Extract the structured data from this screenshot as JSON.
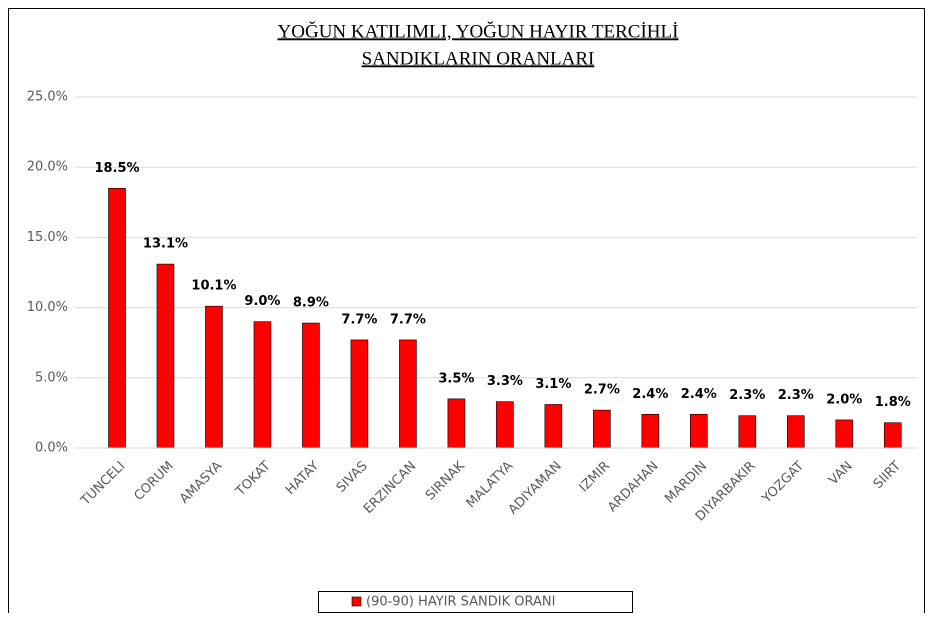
{
  "chart_data": {
    "type": "bar",
    "title": [
      "YOĞUN KATILIMLI, YOĞUN HAYIR TERCİHLİ",
      "SANDIKLARIN ORANLARI"
    ],
    "categories": [
      "TUNCELI",
      "CORUM",
      "AMASYA",
      "TOKAT",
      "HATAY",
      "SIVAS",
      "ERZINCAN",
      "SIRNAK",
      "MALATYA",
      "ADIYAMAN",
      "IZMIR",
      "ARDAHAN",
      "MARDIN",
      "DIYARBAKIR",
      "YOZGAT",
      "VAN",
      "SIIRT"
    ],
    "series": [
      {
        "name": "(90-90) HAYIR SANDIK ORANI",
        "color": "#ff0000",
        "values": [
          18.5,
          13.1,
          10.1,
          9.0,
          8.9,
          7.7,
          7.7,
          3.5,
          3.3,
          3.1,
          2.7,
          2.4,
          2.4,
          2.3,
          2.3,
          2.0,
          1.8
        ],
        "value_labels": [
          "18.5%",
          "13.1%",
          "10.1%",
          "9.0%",
          "8.9%",
          "7.7%",
          "7.7%",
          "3.5%",
          "3.3%",
          "3.1%",
          "2.7%",
          "2.4%",
          "2.4%",
          "2.3%",
          "2.3%",
          "2.0%",
          "1.8%"
        ]
      }
    ],
    "ylim": [
      0,
      25
    ],
    "yticks": [
      {
        "value": 0,
        "label": "0.0%"
      },
      {
        "value": 5,
        "label": "5.0%"
      },
      {
        "value": 10,
        "label": "10.0%"
      },
      {
        "value": 15,
        "label": "15.0%"
      },
      {
        "value": 20,
        "label": "20.0%"
      },
      {
        "value": 25,
        "label": "25.0%"
      }
    ],
    "grid": true,
    "legend": "bottom"
  }
}
